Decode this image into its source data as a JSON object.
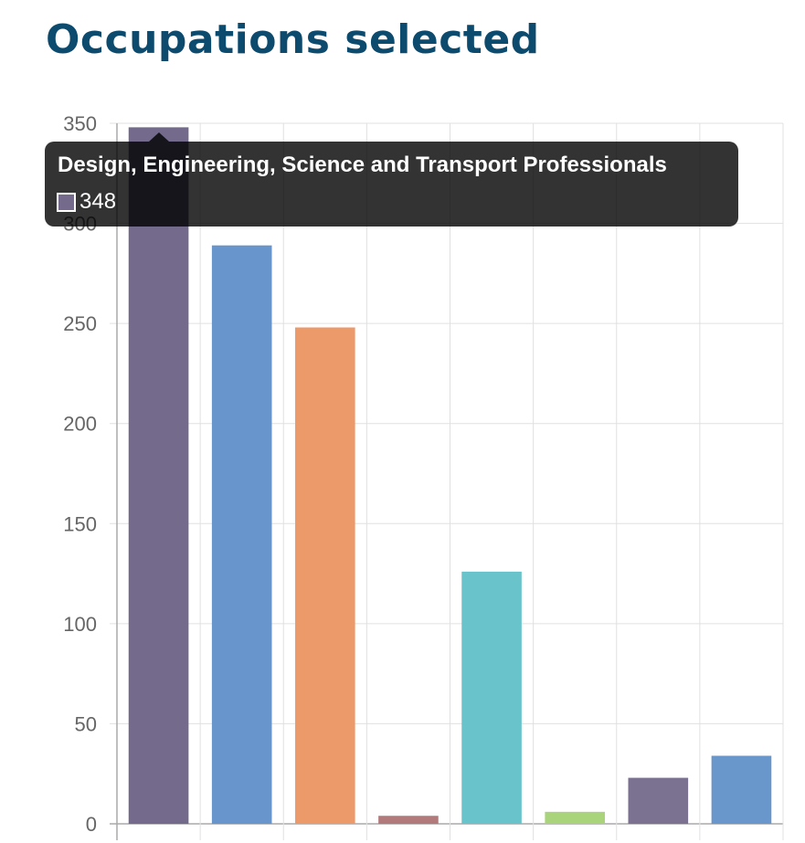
{
  "page": {
    "title": "Occupations selected"
  },
  "chart_data": {
    "type": "bar",
    "title": "",
    "xlabel": "",
    "ylabel": "",
    "ylim": [
      0,
      350
    ],
    "yticks": [
      0,
      50,
      100,
      150,
      200,
      250,
      300,
      350
    ],
    "grid": true,
    "values": [
      348,
      289,
      248,
      4,
      126,
      6,
      23,
      34
    ],
    "colors": [
      "#736a8c",
      "#6795cc",
      "#ed9a6b",
      "#b37a7c",
      "#68c4ca",
      "#a9d47b",
      "#7b7291",
      "#6996cb"
    ]
  },
  "tooltip": {
    "title": "Design, Engineering, Science and Transport Professionals",
    "value": "348",
    "swatch_color": "#736a8c",
    "bar_index": 0
  }
}
